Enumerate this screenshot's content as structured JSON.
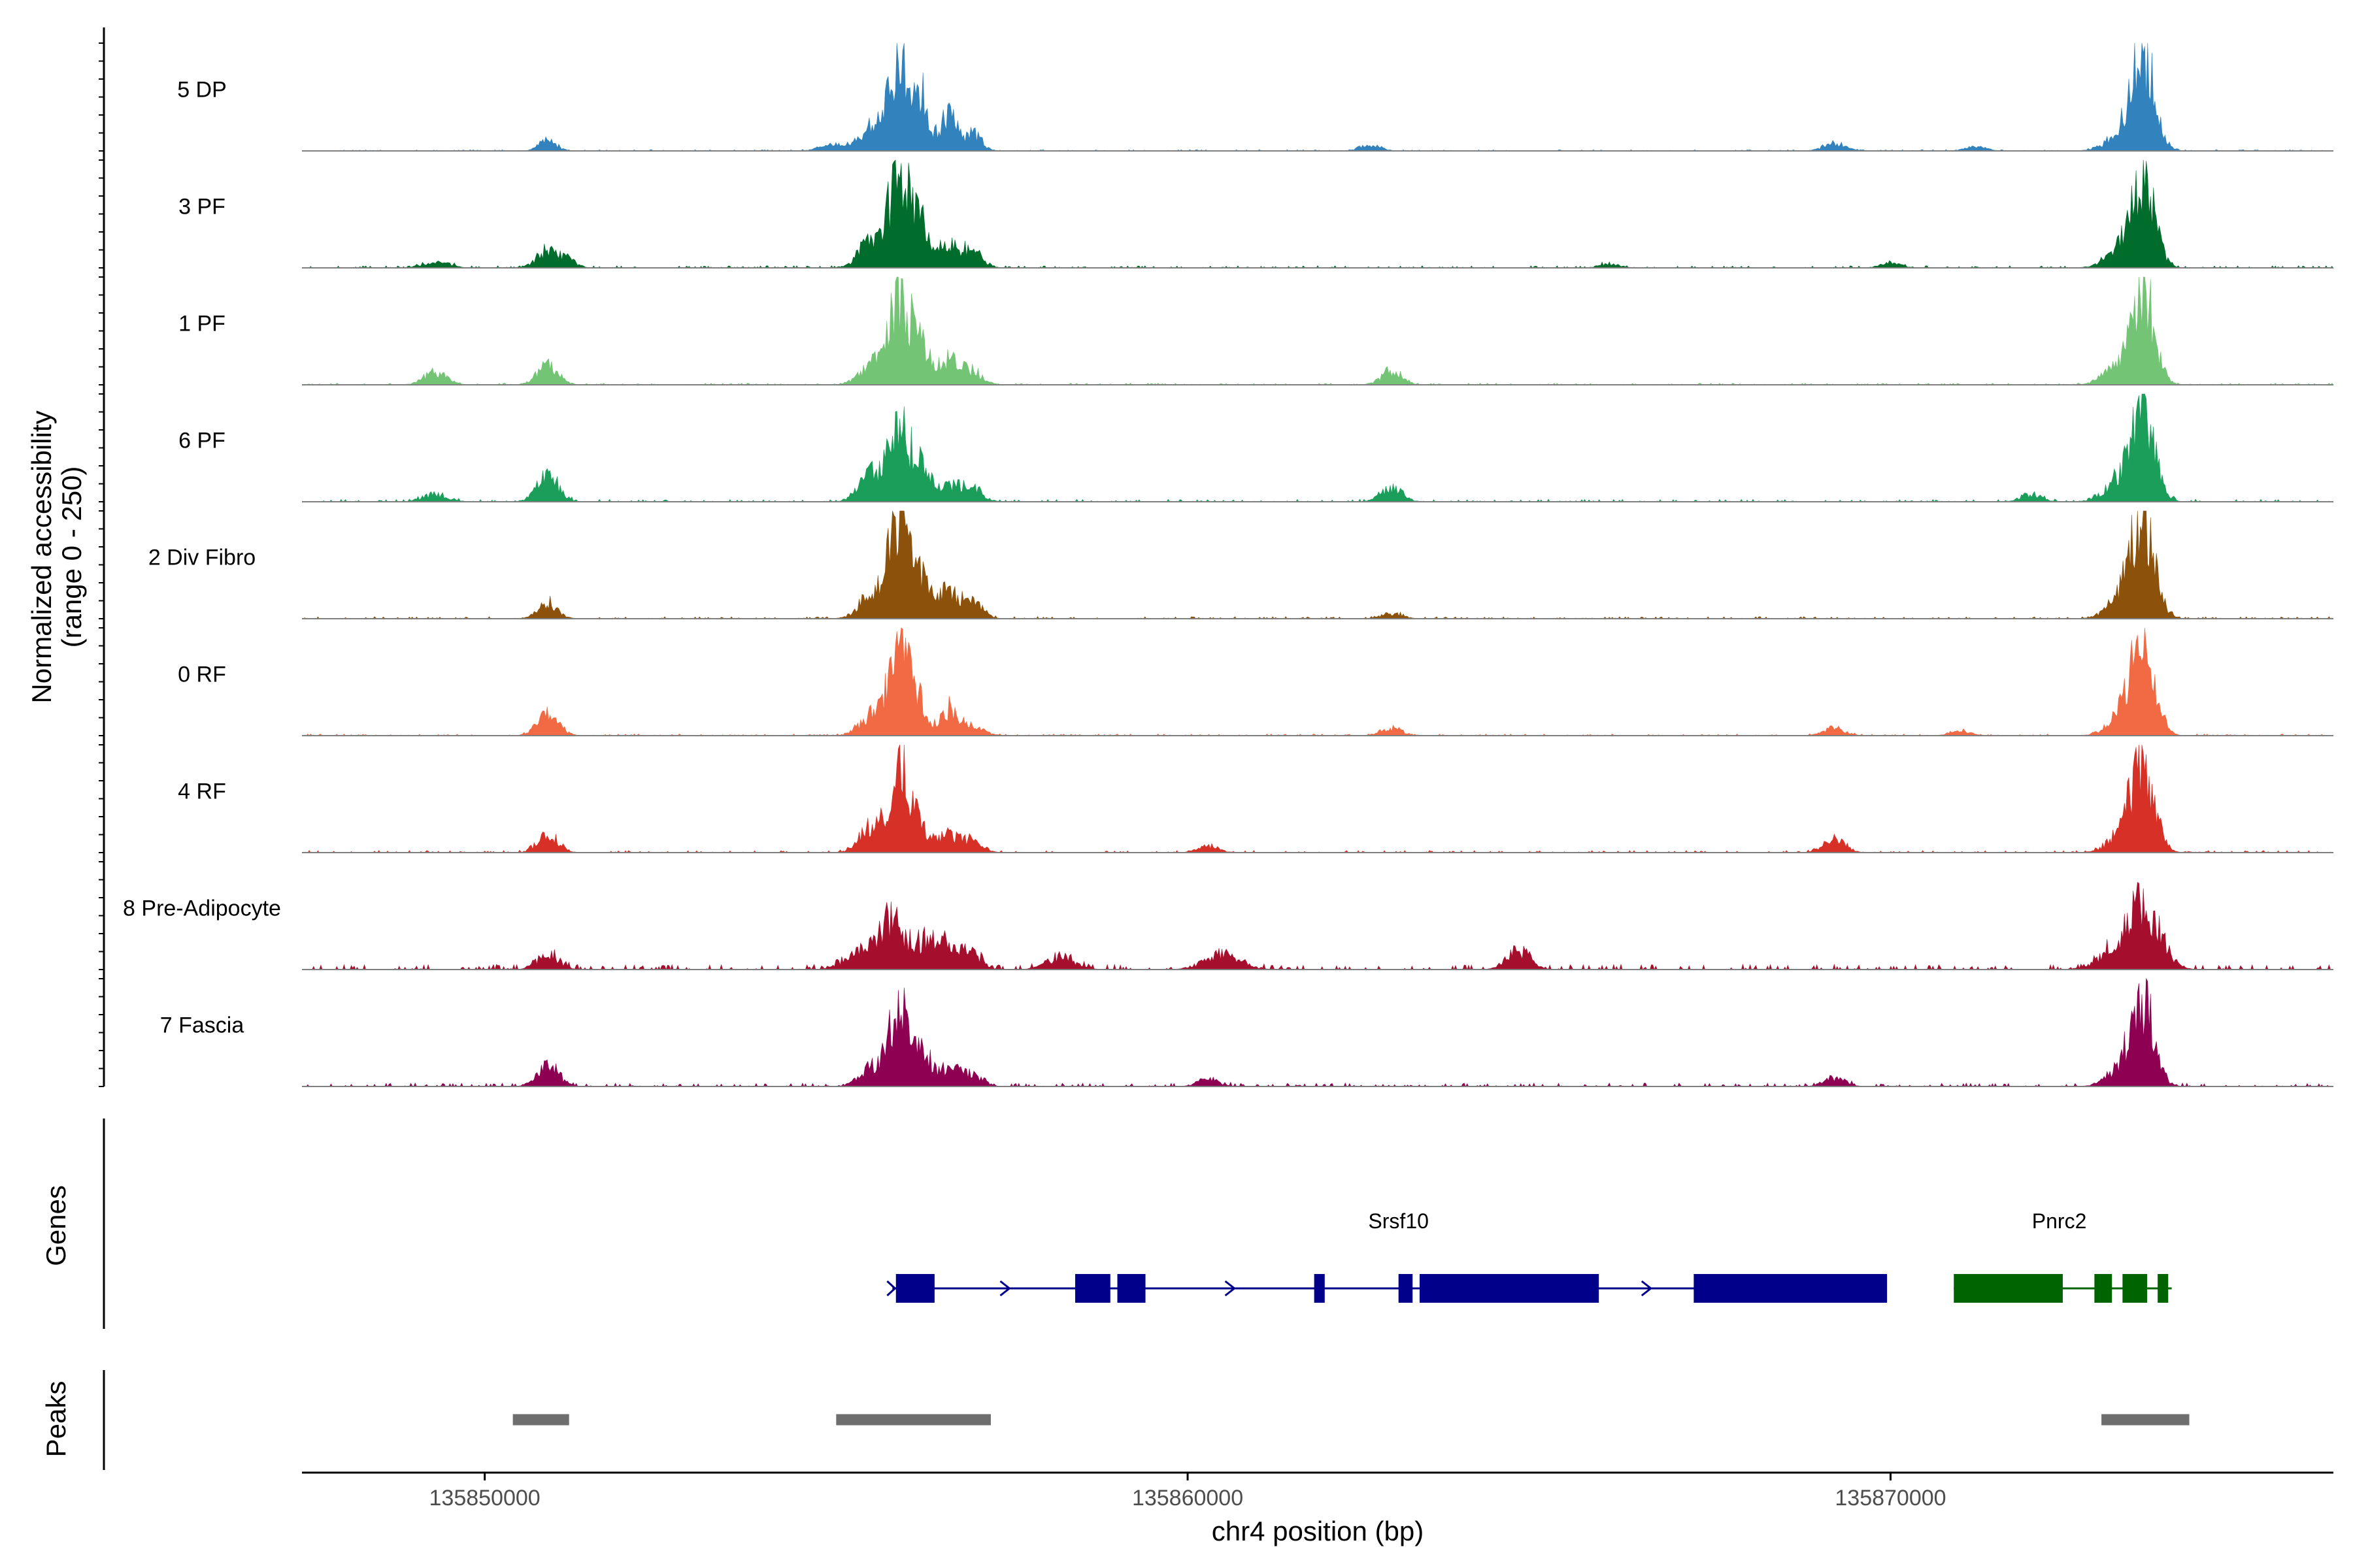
{
  "chart_data": {
    "type": "area",
    "title": "",
    "xlabel": "chr4 position (bp)",
    "ylabel_line1": "Normalized accessibility",
    "ylabel_line2": "(range 0 - 250)",
    "xlim": [
      135847400,
      135876300
    ],
    "ylim": [
      0,
      250
    ],
    "x_ticks": [
      135850000,
      135860000,
      135870000
    ],
    "x_tick_labels": [
      "135850000",
      "135860000",
      "135870000"
    ],
    "series": [
      {
        "name": "5 DP",
        "color": "#3182BD",
        "profile": [
          [
            135850900,
            25,
            120
          ],
          [
            135855000,
            15,
            200
          ],
          [
            135855500,
            55,
            150
          ],
          [
            135855900,
            220,
            140
          ],
          [
            135856200,
            120,
            110
          ],
          [
            135856600,
            80,
            120
          ],
          [
            135856950,
            40,
            110
          ],
          [
            135862600,
            12,
            150
          ],
          [
            135869200,
            18,
            150
          ],
          [
            135871200,
            10,
            150
          ],
          [
            135873600,
            210,
            160
          ],
          [
            135873300,
            40,
            220
          ]
        ],
        "noise": 3
      },
      {
        "name": "3 PF",
        "color": "#006D2C",
        "profile": [
          [
            135849300,
            15,
            180
          ],
          [
            135850900,
            40,
            150
          ],
          [
            135851200,
            18,
            110
          ],
          [
            135855500,
            60,
            170
          ],
          [
            135855900,
            200,
            150
          ],
          [
            135856200,
            90,
            120
          ],
          [
            135856600,
            55,
            150
          ],
          [
            135856950,
            35,
            140
          ],
          [
            135866000,
            8,
            150
          ],
          [
            135870000,
            10,
            150
          ],
          [
            135873600,
            195,
            160
          ],
          [
            135873300,
            45,
            220
          ]
        ],
        "noise": 5
      },
      {
        "name": "1 PF",
        "color": "#74C476",
        "profile": [
          [
            135849300,
            28,
            160
          ],
          [
            135850900,
            42,
            150
          ],
          [
            135855500,
            45,
            170
          ],
          [
            135855900,
            190,
            150
          ],
          [
            135856200,
            100,
            110
          ],
          [
            135856600,
            60,
            150
          ],
          [
            135856950,
            30,
            140
          ],
          [
            135862900,
            32,
            150
          ],
          [
            135873600,
            195,
            160
          ],
          [
            135873300,
            45,
            220
          ]
        ],
        "noise": 4
      },
      {
        "name": "6 PF",
        "color": "#1B9E5A",
        "profile": [
          [
            135849300,
            18,
            170
          ],
          [
            135850900,
            60,
            150
          ],
          [
            135855500,
            60,
            170
          ],
          [
            135855900,
            155,
            150
          ],
          [
            135856200,
            70,
            130
          ],
          [
            135856600,
            40,
            160
          ],
          [
            135856950,
            30,
            140
          ],
          [
            135862900,
            32,
            150
          ],
          [
            135872000,
            18,
            140
          ],
          [
            135873600,
            190,
            160
          ],
          [
            135873300,
            55,
            220
          ]
        ],
        "noise": 6
      },
      {
        "name": "2 Div Fibro",
        "color": "#8C510A",
        "profile": [
          [
            135850900,
            35,
            140
          ],
          [
            135855500,
            60,
            170
          ],
          [
            135855900,
            225,
            150
          ],
          [
            135856200,
            80,
            130
          ],
          [
            135856600,
            60,
            160
          ],
          [
            135856950,
            35,
            140
          ],
          [
            135862900,
            12,
            150
          ],
          [
            135873600,
            215,
            160
          ],
          [
            135873350,
            60,
            220
          ]
        ],
        "noise": 5
      },
      {
        "name": "0 RF",
        "color": "#F16A43",
        "profile": [
          [
            135850900,
            55,
            150
          ],
          [
            135855500,
            45,
            170
          ],
          [
            135855900,
            195,
            150
          ],
          [
            135856200,
            70,
            110
          ],
          [
            135856600,
            60,
            130
          ],
          [
            135856950,
            25,
            140
          ],
          [
            135862900,
            18,
            150
          ],
          [
            135869200,
            18,
            150
          ],
          [
            135871000,
            10,
            150
          ],
          [
            135873600,
            195,
            160
          ],
          [
            135873350,
            50,
            220
          ]
        ],
        "noise": 4
      },
      {
        "name": "4 RF",
        "color": "#D73027",
        "profile": [
          [
            135850900,
            40,
            150
          ],
          [
            135855500,
            55,
            170
          ],
          [
            135855900,
            180,
            150
          ],
          [
            135856200,
            50,
            140
          ],
          [
            135856600,
            40,
            160
          ],
          [
            135856950,
            25,
            140
          ],
          [
            135860300,
            15,
            150
          ],
          [
            135869200,
            30,
            150
          ],
          [
            135873600,
            180,
            160
          ],
          [
            135873350,
            50,
            220
          ]
        ],
        "noise": 5
      },
      {
        "name": "8 Pre-Adipocyte",
        "color": "#A50F2D",
        "profile": [
          [
            135850900,
            35,
            150
          ],
          [
            135855300,
            35,
            200
          ],
          [
            135855800,
            110,
            200
          ],
          [
            135856400,
            80,
            200
          ],
          [
            135856900,
            40,
            150
          ],
          [
            135858200,
            30,
            200
          ],
          [
            135860500,
            35,
            250
          ],
          [
            135864700,
            45,
            160
          ],
          [
            135873600,
            140,
            230
          ],
          [
            135873200,
            35,
            250
          ]
        ],
        "noise": 12
      },
      {
        "name": "7 Fascia",
        "color": "#8E0152",
        "profile": [
          [
            135850900,
            50,
            150
          ],
          [
            135855500,
            40,
            170
          ],
          [
            135855900,
            170,
            150
          ],
          [
            135856200,
            70,
            140
          ],
          [
            135856600,
            40,
            160
          ],
          [
            135856950,
            25,
            140
          ],
          [
            135860300,
            18,
            150
          ],
          [
            135869200,
            20,
            150
          ],
          [
            135873600,
            170,
            160
          ],
          [
            135873350,
            50,
            220
          ]
        ],
        "noise": 8
      }
    ],
    "genes": [
      {
        "name": "Srsf10",
        "color": "#00008B",
        "strand": "+",
        "start": 135855800,
        "end": 135869900,
        "exons": [
          [
            135855850,
            135856400
          ],
          [
            135858400,
            135858900
          ],
          [
            135859000,
            135859400
          ],
          [
            135861800,
            135861950
          ],
          [
            135863000,
            135863200
          ],
          [
            135863300,
            135865850
          ],
          [
            135867200,
            135869950
          ]
        ],
        "label_x": 135863000
      },
      {
        "name": "Pnrc2",
        "color": "#006400",
        "strand": "+",
        "start": 135870900,
        "end": 135874000,
        "exons": [
          [
            135870900,
            135872450
          ],
          [
            135872900,
            135873150
          ],
          [
            135873300,
            135873650
          ],
          [
            135873800,
            135873950
          ]
        ],
        "label_x": 135872400
      }
    ],
    "peaks": [
      [
        135850400,
        135851200
      ],
      [
        135855000,
        135857200
      ],
      [
        135873000,
        135874250
      ]
    ],
    "gene_track_label": "Genes",
    "peak_track_label": "Peaks"
  },
  "colors": {
    "axis": "#000000",
    "baseline": "#7F7F7F",
    "peak": "#6E6E6E",
    "text": "#000000",
    "tick_label": "#4D4D4D"
  }
}
